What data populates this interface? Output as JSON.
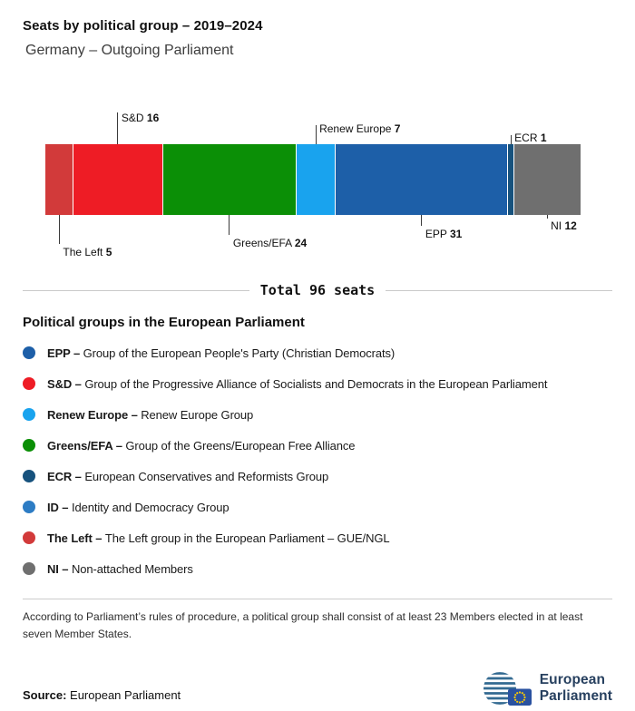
{
  "header": {
    "title": "Seats by political group – 2019–2024",
    "subtitle": "Germany – Outgoing Parliament"
  },
  "chart_data": {
    "type": "bar",
    "title": "Seats by political group – 2019–2024",
    "subtitle": "Germany – Outgoing Parliament",
    "total_seats": 96,
    "total_label": "Total 96 seats",
    "segments": [
      {
        "name": "The Left",
        "seats": 5,
        "color": "#d23a3a",
        "label_position": "below"
      },
      {
        "name": "S&D",
        "seats": 16,
        "color": "#ee1c25",
        "label_position": "above"
      },
      {
        "name": "Greens/EFA",
        "seats": 24,
        "color": "#0b8f06",
        "label_position": "below"
      },
      {
        "name": "Renew Europe",
        "seats": 7,
        "color": "#19a3ee",
        "label_position": "above"
      },
      {
        "name": "EPP",
        "seats": 31,
        "color": "#1d5fa8",
        "label_position": "below"
      },
      {
        "name": "ECR",
        "seats": 1,
        "color": "#17527d",
        "label_position": "above"
      },
      {
        "name": "NI",
        "seats": 12,
        "color": "#6f6f6f",
        "label_position": "below"
      }
    ]
  },
  "legend": {
    "heading": "Political groups in the European Parliament",
    "items": [
      {
        "abbr": "EPP –",
        "desc": "Group of the European People's Party (Christian Democrats)",
        "color": "#1d5fa8"
      },
      {
        "abbr": "S&D –",
        "desc": "Group of the Progressive Alliance of Socialists and Democrats in the European Parliament",
        "color": "#ee1c25"
      },
      {
        "abbr": "Renew Europe –",
        "desc": "Renew Europe Group",
        "color": "#19a3ee"
      },
      {
        "abbr": "Greens/EFA –",
        "desc": "Group of the Greens/European Free Alliance",
        "color": "#0b8f06"
      },
      {
        "abbr": "ECR –",
        "desc": "European Conservatives and Reformists Group",
        "color": "#17527d"
      },
      {
        "abbr": "ID –",
        "desc": "Identity and Democracy Group",
        "color": "#2d7cc4"
      },
      {
        "abbr": "The Left –",
        "desc": "The Left group in the European Parliament – GUE/NGL",
        "color": "#d23a3a"
      },
      {
        "abbr": "NI –",
        "desc": "Non-attached Members",
        "color": "#6f6f6f"
      }
    ]
  },
  "footnote": "According to Parliament’s rules of procedure, a political group shall consist of at least 23 Members elected in at least seven Member States.",
  "source": {
    "label": "Source:",
    "value": "European Parliament"
  },
  "logo": {
    "line1": "European",
    "line2": "Parliament"
  }
}
